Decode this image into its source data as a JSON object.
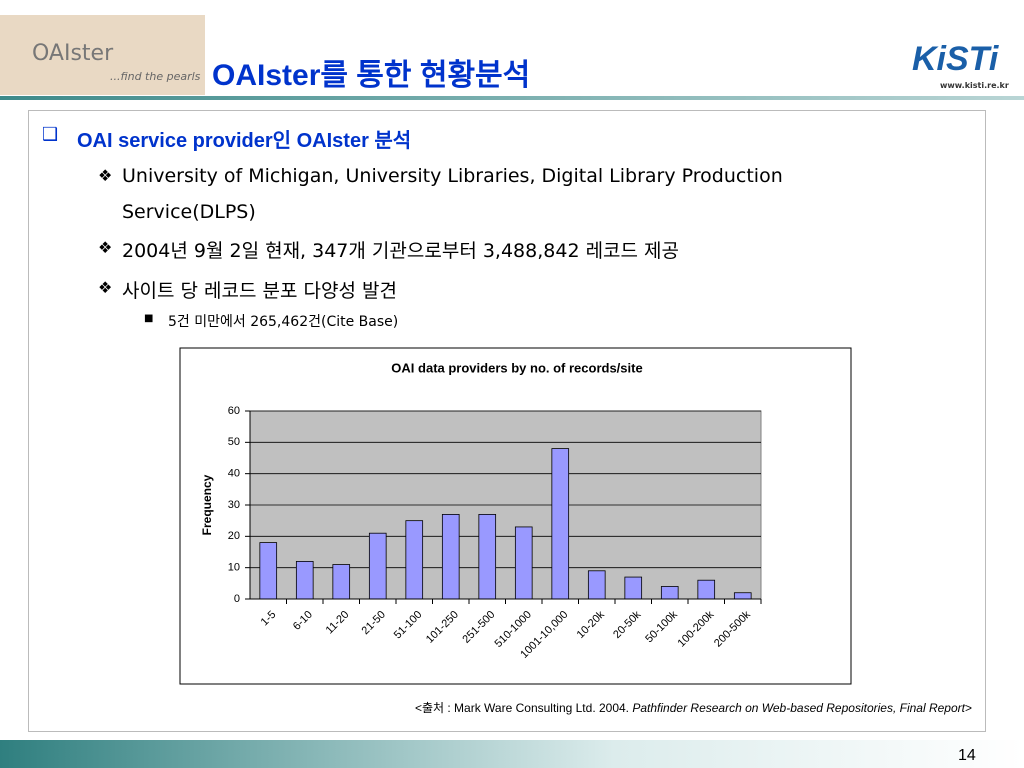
{
  "header": {
    "title": "OAIster를 통한 현황분석",
    "logo_left": "OAIster",
    "logo_left_tagline": "...find the pearls",
    "logo_right": "KiSTi",
    "logo_right_url": "www.kisti.re.kr"
  },
  "bullets": [
    {
      "text": "OAI service provider인 OAIster 분석",
      "items": [
        {
          "text": "University of Michigan, University Libraries, Digital Library Production Service(DLPS)"
        },
        {
          "text": "2004년 9월 2일 현재, 347개 기관으로부터 3,488,842 레코드 제공"
        },
        {
          "text": "사이트 당 레코드 분포 다양성 발견",
          "items": [
            {
              "text": "5건 미만에서 265,462건(Cite Base)"
            }
          ]
        }
      ]
    }
  ],
  "chart_data": {
    "type": "bar",
    "title": "OAI data providers by no. of records/site",
    "y_label": "Frequency",
    "categories": [
      "1-5",
      "6-10",
      "11-20",
      "21-50",
      "51-100",
      "101-250",
      "251-500",
      "510-1000",
      "1001-10,000",
      "10-20k",
      "20-50k",
      "50-100k",
      "100-200k",
      "200-500k"
    ],
    "values": [
      18,
      12,
      11,
      21,
      25,
      27,
      27,
      23,
      48,
      9,
      7,
      4,
      6,
      2
    ],
    "color": "#9999ff",
    "ylim": [
      0,
      60
    ],
    "yticks": [
      0,
      10,
      20,
      30,
      40,
      50,
      60
    ],
    "grid": true
  },
  "source": {
    "prefix": "<출처 : Mark Ware Consulting Ltd. 2004. ",
    "title": "Pathfinder Research on Web-based Repositories, Final Report",
    "suffix": ">"
  },
  "page_number": "14"
}
